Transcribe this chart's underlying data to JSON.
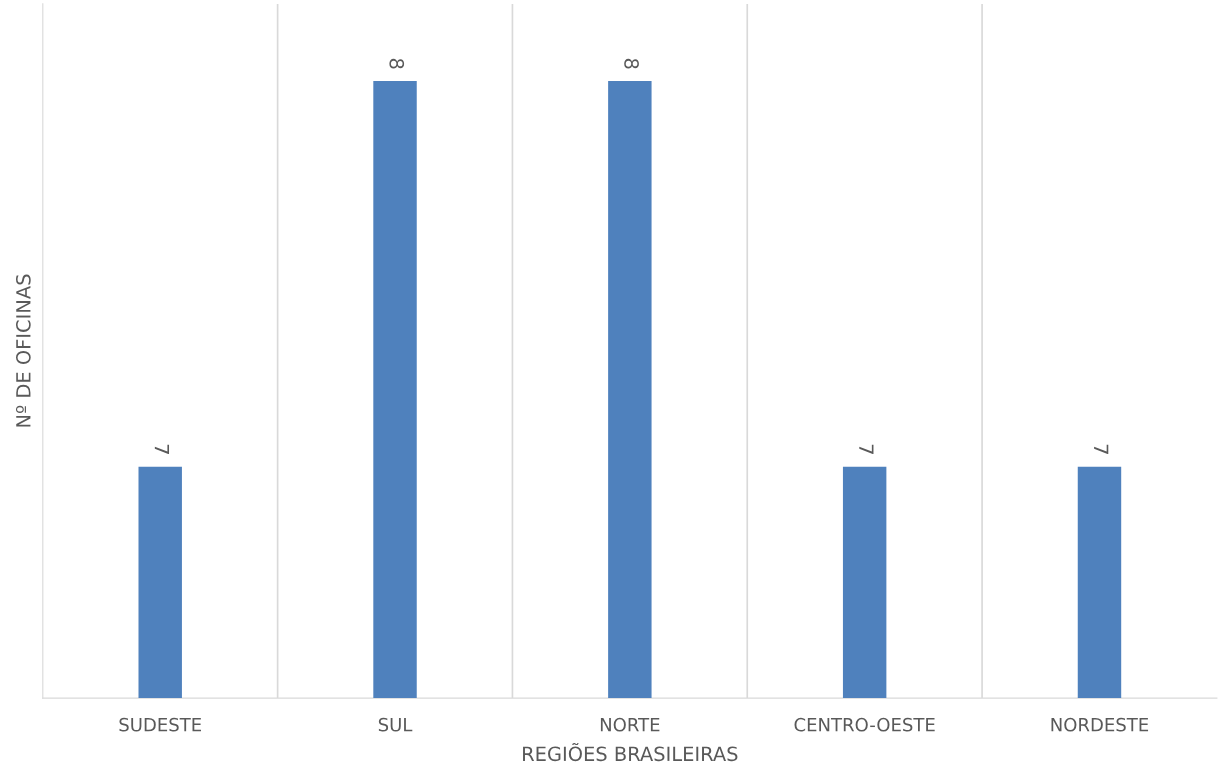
{
  "chart_data": {
    "type": "bar",
    "xlabel": "REGIÕES BRASILEIRAS",
    "ylabel": "Nº DE OFICINAS",
    "categories": [
      "SUDESTE",
      "SUL",
      "NORTE",
      "CENTRO-OESTE",
      "NORDESTE"
    ],
    "values": [
      7,
      8,
      8,
      7,
      7
    ],
    "color": "#4f81bd",
    "ylim": [
      6.4,
      8.2
    ],
    "grid": "x",
    "data_labels": true
  }
}
